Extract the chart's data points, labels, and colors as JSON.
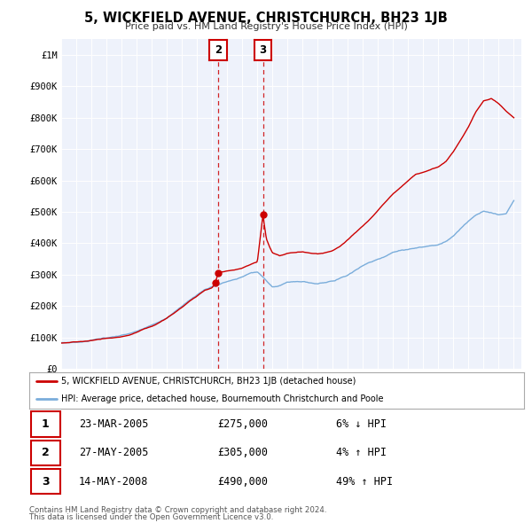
{
  "title": "5, WICKFIELD AVENUE, CHRISTCHURCH, BH23 1JB",
  "subtitle": "Price paid vs. HM Land Registry's House Price Index (HPI)",
  "legend_label_red": "5, WICKFIELD AVENUE, CHRISTCHURCH, BH23 1JB (detached house)",
  "legend_label_blue": "HPI: Average price, detached house, Bournemouth Christchurch and Poole",
  "transactions": [
    {
      "num": 1,
      "date": "23-MAR-2005",
      "price": 275000,
      "pct": "6%",
      "dir": "↓",
      "year": 2005.22
    },
    {
      "num": 2,
      "date": "27-MAY-2005",
      "price": 305000,
      "pct": "4%",
      "dir": "↑",
      "year": 2005.4
    },
    {
      "num": 3,
      "date": "14-MAY-2008",
      "price": 490000,
      "pct": "49%",
      "dir": "↑",
      "year": 2008.37
    }
  ],
  "footnote1": "Contains HM Land Registry data © Crown copyright and database right 2024.",
  "footnote2": "This data is licensed under the Open Government Licence v3.0.",
  "red_color": "#cc0000",
  "blue_color": "#7aaddb",
  "background_color": "#eef2fb",
  "grid_color": "#ffffff",
  "ylim_max": 1050000,
  "xlim_start": 1995.0,
  "xlim_end": 2025.5,
  "yticks": [
    0,
    100000,
    200000,
    300000,
    400000,
    500000,
    600000,
    700000,
    800000,
    900000,
    1000000
  ],
  "ytick_labels": [
    "£0",
    "£100K",
    "£200K",
    "£300K",
    "£400K",
    "£500K",
    "£600K",
    "£700K",
    "£800K",
    "£900K",
    "£1M"
  ],
  "hpi_anchors": [
    [
      1995.0,
      83000
    ],
    [
      1995.5,
      83500
    ],
    [
      1996.0,
      85000
    ],
    [
      1996.5,
      87000
    ],
    [
      1997.0,
      91000
    ],
    [
      1997.5,
      95000
    ],
    [
      1998.0,
      99000
    ],
    [
      1998.5,
      102000
    ],
    [
      1999.0,
      105000
    ],
    [
      1999.5,
      110000
    ],
    [
      2000.0,
      118000
    ],
    [
      2000.5,
      128000
    ],
    [
      2001.0,
      138000
    ],
    [
      2001.5,
      150000
    ],
    [
      2002.0,
      165000
    ],
    [
      2002.5,
      182000
    ],
    [
      2003.0,
      198000
    ],
    [
      2003.5,
      218000
    ],
    [
      2004.0,
      235000
    ],
    [
      2004.5,
      252000
    ],
    [
      2005.0,
      262000
    ],
    [
      2005.5,
      270000
    ],
    [
      2006.0,
      278000
    ],
    [
      2006.5,
      283000
    ],
    [
      2007.0,
      292000
    ],
    [
      2007.5,
      305000
    ],
    [
      2008.0,
      308000
    ],
    [
      2008.5,
      285000
    ],
    [
      2009.0,
      262000
    ],
    [
      2009.5,
      265000
    ],
    [
      2010.0,
      275000
    ],
    [
      2010.5,
      278000
    ],
    [
      2011.0,
      278000
    ],
    [
      2011.5,
      275000
    ],
    [
      2012.0,
      272000
    ],
    [
      2012.5,
      275000
    ],
    [
      2013.0,
      280000
    ],
    [
      2013.5,
      290000
    ],
    [
      2014.0,
      300000
    ],
    [
      2014.5,
      315000
    ],
    [
      2015.0,
      328000
    ],
    [
      2015.5,
      340000
    ],
    [
      2016.0,
      352000
    ],
    [
      2016.5,
      360000
    ],
    [
      2017.0,
      370000
    ],
    [
      2017.5,
      378000
    ],
    [
      2018.0,
      382000
    ],
    [
      2018.5,
      385000
    ],
    [
      2019.0,
      388000
    ],
    [
      2019.5,
      392000
    ],
    [
      2020.0,
      395000
    ],
    [
      2020.5,
      408000
    ],
    [
      2021.0,
      425000
    ],
    [
      2021.5,
      448000
    ],
    [
      2022.0,
      472000
    ],
    [
      2022.5,
      492000
    ],
    [
      2023.0,
      502000
    ],
    [
      2023.5,
      495000
    ],
    [
      2024.0,
      488000
    ],
    [
      2024.5,
      492000
    ],
    [
      2025.0,
      535000
    ]
  ],
  "red_anchors": [
    [
      1995.0,
      82000
    ],
    [
      1995.5,
      83000
    ],
    [
      1996.0,
      85000
    ],
    [
      1996.5,
      87000
    ],
    [
      1997.0,
      90000
    ],
    [
      1997.5,
      93000
    ],
    [
      1998.0,
      97000
    ],
    [
      1998.5,
      100000
    ],
    [
      1999.0,
      103000
    ],
    [
      1999.5,
      108000
    ],
    [
      2000.0,
      116000
    ],
    [
      2000.5,
      126000
    ],
    [
      2001.0,
      135000
    ],
    [
      2001.5,
      148000
    ],
    [
      2002.0,
      162000
    ],
    [
      2002.5,
      178000
    ],
    [
      2003.0,
      195000
    ],
    [
      2003.5,
      215000
    ],
    [
      2004.0,
      232000
    ],
    [
      2004.5,
      250000
    ],
    [
      2005.0,
      258000
    ],
    [
      2005.22,
      275000
    ],
    [
      2005.4,
      305000
    ],
    [
      2005.6,
      308000
    ],
    [
      2006.0,
      312000
    ],
    [
      2006.5,
      316000
    ],
    [
      2007.0,
      320000
    ],
    [
      2007.5,
      330000
    ],
    [
      2008.0,
      340000
    ],
    [
      2008.37,
      490000
    ],
    [
      2008.6,
      415000
    ],
    [
      2008.8,
      390000
    ],
    [
      2009.0,
      370000
    ],
    [
      2009.5,
      360000
    ],
    [
      2010.0,
      368000
    ],
    [
      2010.5,
      370000
    ],
    [
      2011.0,
      372000
    ],
    [
      2011.5,
      368000
    ],
    [
      2012.0,
      365000
    ],
    [
      2012.5,
      368000
    ],
    [
      2013.0,
      375000
    ],
    [
      2013.5,
      390000
    ],
    [
      2014.0,
      410000
    ],
    [
      2014.5,
      432000
    ],
    [
      2015.0,
      455000
    ],
    [
      2015.5,
      478000
    ],
    [
      2016.0,
      505000
    ],
    [
      2016.5,
      530000
    ],
    [
      2017.0,
      558000
    ],
    [
      2017.5,
      580000
    ],
    [
      2018.0,
      600000
    ],
    [
      2018.5,
      620000
    ],
    [
      2019.0,
      628000
    ],
    [
      2019.5,
      635000
    ],
    [
      2020.0,
      642000
    ],
    [
      2020.5,
      660000
    ],
    [
      2021.0,
      692000
    ],
    [
      2021.5,
      730000
    ],
    [
      2022.0,
      770000
    ],
    [
      2022.5,
      820000
    ],
    [
      2023.0,
      855000
    ],
    [
      2023.5,
      862000
    ],
    [
      2024.0,
      845000
    ],
    [
      2024.5,
      820000
    ],
    [
      2025.0,
      800000
    ]
  ]
}
